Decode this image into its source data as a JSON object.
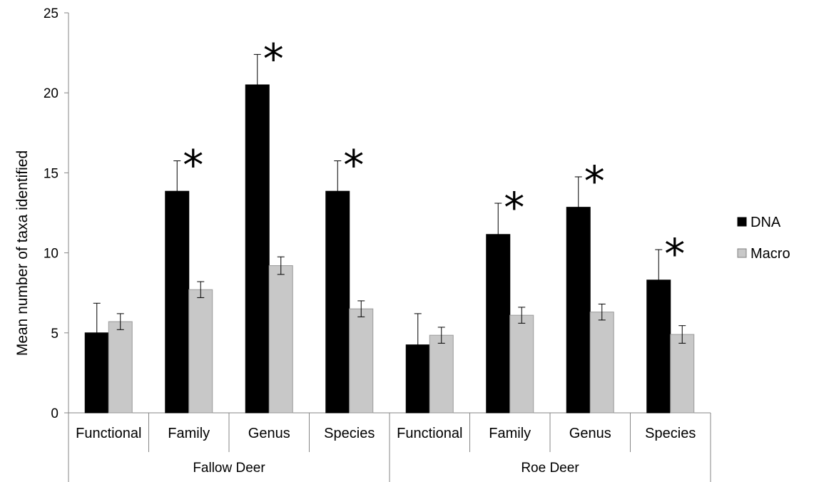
{
  "chart_data": {
    "type": "bar",
    "title": "",
    "xlabel": "",
    "ylabel": "Mean number of taxa identified",
    "ylim": [
      0,
      25
    ],
    "yticks": [
      0,
      5,
      10,
      15,
      20,
      25
    ],
    "grid": false,
    "legend_position": "right",
    "groups": [
      {
        "label": "Fallow Deer",
        "categories": [
          "Functional",
          "Family",
          "Genus",
          "Species"
        ]
      },
      {
        "label": "Roe Deer",
        "categories": [
          "Functional",
          "Family",
          "Genus",
          "Species"
        ]
      }
    ],
    "series": [
      {
        "name": "DNA",
        "color": "#000000",
        "values": [
          5.0,
          13.85,
          20.5,
          13.85,
          4.25,
          11.15,
          12.85,
          8.3
        ],
        "errors": [
          1.85,
          1.9,
          1.9,
          1.9,
          1.95,
          1.95,
          1.9,
          1.9
        ]
      },
      {
        "name": "Macro",
        "color": "#c8c8c8",
        "values": [
          5.7,
          7.7,
          9.2,
          6.5,
          4.85,
          6.1,
          6.3,
          4.9
        ],
        "errors": [
          0.5,
          0.5,
          0.55,
          0.5,
          0.5,
          0.5,
          0.5,
          0.55
        ]
      }
    ],
    "significant_marker": "*",
    "significant": [
      false,
      true,
      true,
      true,
      false,
      true,
      true,
      true
    ]
  }
}
